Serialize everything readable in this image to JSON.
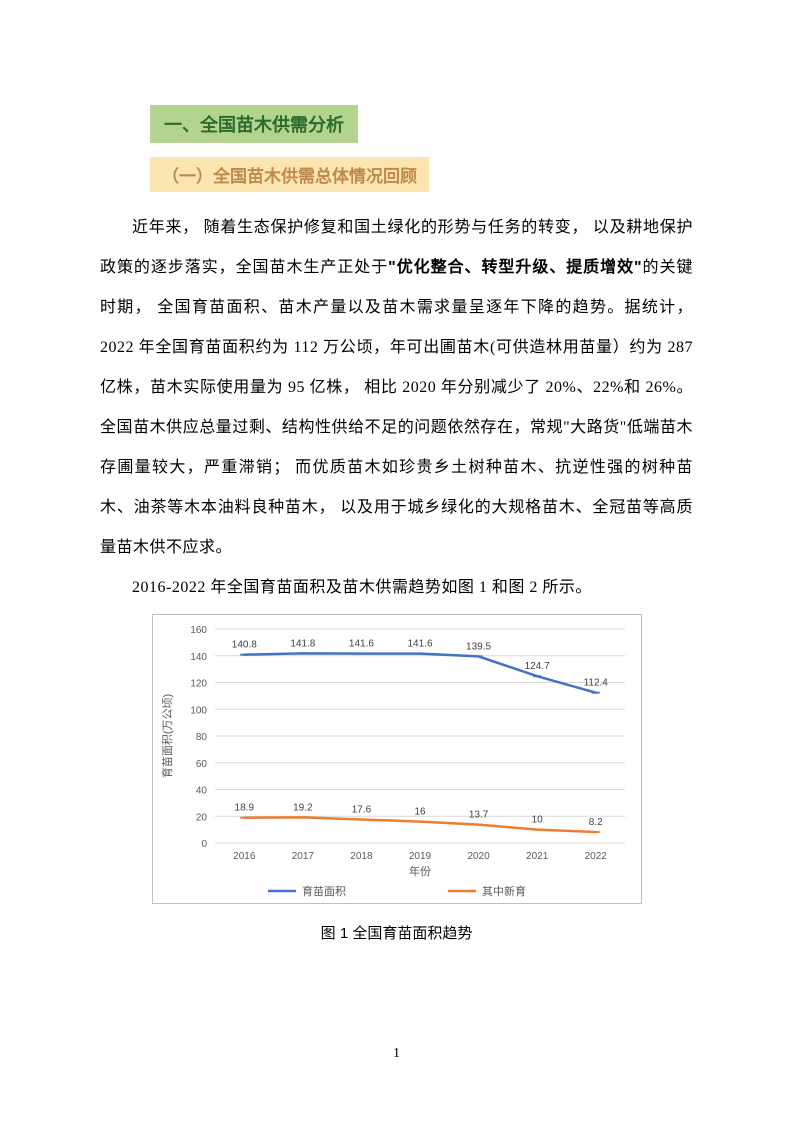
{
  "heading1": "一、全国苗木供需分析",
  "heading2": "（一）全国苗木供需总体情况回顾",
  "para1_a": "近年来， 随着生态保护修复和国土绿化的形势与任务的转变， 以及耕地保护政策的逐步落实，全国苗木生产正处于",
  "para1_bold": "\"优化整合、转型升级、提质增效\"",
  "para1_b": "的关键时期， 全国育苗面积、苗木产量以及苗木需求量呈逐年下降的趋势。据统计， 2022 年全国育苗面积约为 112 万公顷，年可出圃苗木(可供造林用苗量）约为 287 亿株，苗木实际使用量为 95 亿株， 相比 2020 年分别减少了 20%、22%和 26%。全国苗木供应总量过剩、结构性供给不足的问题依然存在，常规\"大路货\"低端苗木存圃量较大，严重滞销； 而优质苗木如珍贵乡土树种苗木、抗逆性强的树种苗木、油茶等木本油料良种苗木， 以及用于城乡绿化的大规格苗木、全冠苗等高质量苗木供不应求。",
  "caption_intro": "2016-2022 年全国育苗面积及苗木供需趋势如图 1 和图 2 所示。",
  "chart": {
    "type": "line",
    "title_fontsize": 10,
    "background_color": "#ffffff",
    "border_color": "#c0c0c0",
    "grid_color": "#d9d9d9",
    "axis_label_color": "#595959",
    "tick_label_color": "#595959",
    "tick_fontsize": 10,
    "label_fontsize": 11,
    "ylabel": "育苗面积(万公顷)",
    "xlabel": "年份",
    "ylim": [
      0,
      160
    ],
    "ytick_step": 20,
    "categories": [
      "2016",
      "2017",
      "2018",
      "2019",
      "2020",
      "2021",
      "2022"
    ],
    "series": [
      {
        "name": "育苗面积",
        "color": "#4472c4",
        "width": 2.5,
        "marker": "dash",
        "values": [
          140.8,
          141.8,
          141.6,
          141.6,
          139.5,
          124.7,
          112.4
        ]
      },
      {
        "name": "其中新育",
        "color": "#ed7d31",
        "width": 2.5,
        "marker": "dash",
        "values": [
          18.9,
          19.2,
          17.6,
          16,
          13.7,
          10,
          8.2
        ]
      }
    ],
    "data_label_color": "#404040",
    "data_label_fontsize": 10
  },
  "chart_caption": "图 1 全国育苗面积趋势",
  "page_number": "1"
}
